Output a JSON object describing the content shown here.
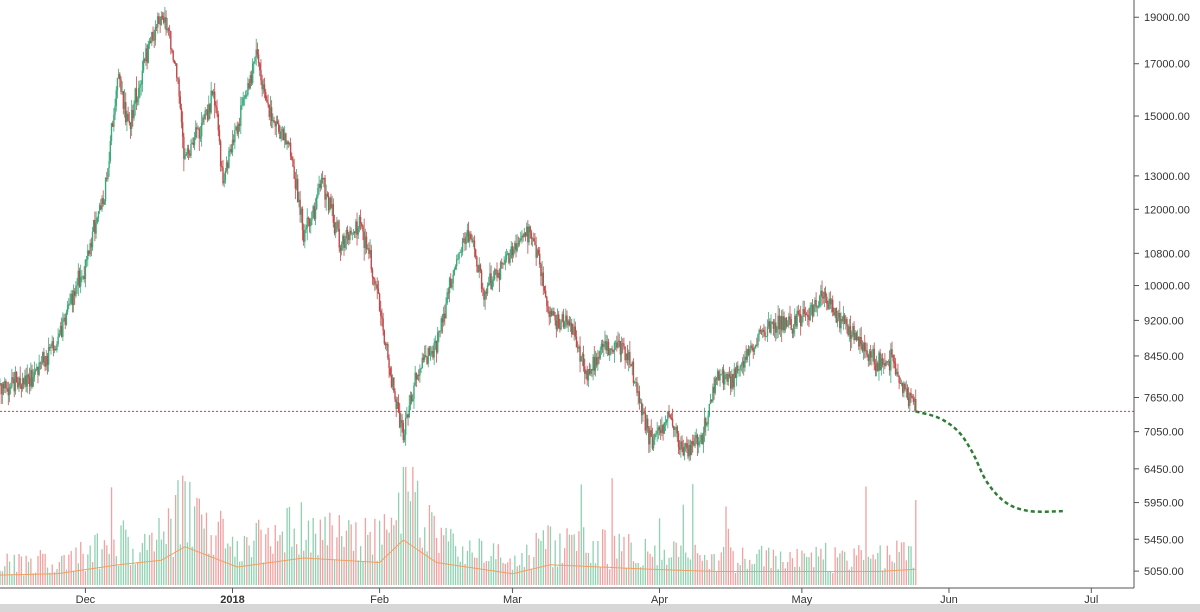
{
  "chart_data": {
    "type": "candlestick",
    "title": "",
    "xlabel": "",
    "ylabel": "",
    "y_scale": "log",
    "ylim": [
      4850,
      19800
    ],
    "y_ticks": [
      "19000.00",
      "17000.00",
      "15000.00",
      "13000.00",
      "12000.00",
      "10800.00",
      "10000.00",
      "9200.00",
      "8450.00",
      "7650.00",
      "7050.00",
      "6450.00",
      "5950.00",
      "5450.00",
      "5050.00"
    ],
    "y_tick_values": [
      19000,
      17000,
      15000,
      13000,
      12000,
      10800,
      10000,
      9200,
      8450,
      7650,
      7050,
      6450,
      5950,
      5450,
      5050
    ],
    "x_range": [
      "2017-11-13",
      "2018-07-10"
    ],
    "x_ticks": [
      {
        "label": "Dec",
        "date": "2017-12-01",
        "bold": false
      },
      {
        "label": "2018",
        "date": "2018-01-01",
        "bold": true
      },
      {
        "label": "Feb",
        "date": "2018-02-01",
        "bold": false
      },
      {
        "label": "Mar",
        "date": "2018-03-01",
        "bold": false
      },
      {
        "label": "Apr",
        "date": "2018-04-01",
        "bold": false
      },
      {
        "label": "May",
        "date": "2018-05-01",
        "bold": false
      },
      {
        "label": "Jun",
        "date": "2018-06-01",
        "bold": false
      },
      {
        "label": "Jul",
        "date": "2018-07-01",
        "bold": false
      }
    ],
    "price_path": [
      [
        "2017-11-13",
        7900
      ],
      [
        "2017-11-20",
        8000
      ],
      [
        "2017-11-25",
        8700
      ],
      [
        "2017-11-28",
        9700
      ],
      [
        "2017-12-01",
        10500
      ],
      [
        "2017-12-05",
        12500
      ],
      [
        "2017-12-08",
        16500
      ],
      [
        "2017-12-10",
        14500
      ],
      [
        "2017-12-13",
        16800
      ],
      [
        "2017-12-17",
        19300
      ],
      [
        "2017-12-20",
        17000
      ],
      [
        "2017-12-22",
        13500
      ],
      [
        "2017-12-25",
        14500
      ],
      [
        "2017-12-28",
        15800
      ],
      [
        "2017-12-30",
        13000
      ],
      [
        "2018-01-02",
        14500
      ],
      [
        "2018-01-06",
        17200
      ],
      [
        "2018-01-09",
        15000
      ],
      [
        "2018-01-13",
        14000
      ],
      [
        "2018-01-16",
        11200
      ],
      [
        "2018-01-20",
        12800
      ],
      [
        "2018-01-24",
        11000
      ],
      [
        "2018-01-28",
        11700
      ],
      [
        "2018-02-01",
        9500
      ],
      [
        "2018-02-03",
        8200
      ],
      [
        "2018-02-06",
        6900
      ],
      [
        "2018-02-09",
        8200
      ],
      [
        "2018-02-13",
        8700
      ],
      [
        "2018-02-17",
        10500
      ],
      [
        "2018-02-20",
        11400
      ],
      [
        "2018-02-23",
        9800
      ],
      [
        "2018-02-27",
        10600
      ],
      [
        "2018-03-05",
        11500
      ],
      [
        "2018-03-09",
        9300
      ],
      [
        "2018-03-13",
        9100
      ],
      [
        "2018-03-17",
        8000
      ],
      [
        "2018-03-20",
        8700
      ],
      [
        "2018-03-25",
        8500
      ],
      [
        "2018-03-30",
        6900
      ],
      [
        "2018-04-03",
        7300
      ],
      [
        "2018-04-06",
        6700
      ],
      [
        "2018-04-10",
        6900
      ],
      [
        "2018-04-13",
        8000
      ],
      [
        "2018-04-17",
        8000
      ],
      [
        "2018-04-22",
        8900
      ],
      [
        "2018-04-26",
        9100
      ],
      [
        "2018-05-01",
        9200
      ],
      [
        "2018-05-05",
        9800
      ],
      [
        "2018-05-09",
        9300
      ],
      [
        "2018-05-13",
        8700
      ],
      [
        "2018-05-17",
        8300
      ],
      [
        "2018-05-20",
        8400
      ],
      [
        "2018-05-22",
        7900
      ],
      [
        "2018-05-25",
        7400
      ]
    ],
    "volume_path": [
      [
        "2017-11-13",
        0.22
      ],
      [
        "2017-11-25",
        0.25
      ],
      [
        "2017-12-08",
        0.45
      ],
      [
        "2017-12-17",
        0.55
      ],
      [
        "2017-12-22",
        0.85
      ],
      [
        "2018-01-02",
        0.4
      ],
      [
        "2018-01-16",
        0.6
      ],
      [
        "2018-02-01",
        0.5
      ],
      [
        "2018-02-06",
        1.0
      ],
      [
        "2018-02-13",
        0.5
      ],
      [
        "2018-03-01",
        0.25
      ],
      [
        "2018-03-09",
        0.45
      ],
      [
        "2018-03-30",
        0.35
      ],
      [
        "2018-04-13",
        0.3
      ],
      [
        "2018-05-01",
        0.3
      ],
      [
        "2018-05-17",
        0.3
      ],
      [
        "2018-05-25",
        0.35
      ]
    ],
    "horizontal_line": {
      "value": 7400,
      "color": "#e53935",
      "style": "dotted"
    },
    "projection": {
      "color": "#2e7d32",
      "style": "dashed",
      "points": [
        [
          "2018-05-25",
          7400
        ],
        [
          "2018-05-30",
          7280
        ],
        [
          "2018-06-03",
          7050
        ],
        [
          "2018-06-06",
          6700
        ],
        [
          "2018-06-09",
          6250
        ],
        [
          "2018-06-13",
          5950
        ],
        [
          "2018-06-18",
          5830
        ],
        [
          "2018-06-25",
          5830
        ]
      ]
    },
    "colors": {
      "up": "#3aa87a",
      "down": "#c24a4a",
      "volume_up": "#8fd1b0",
      "volume_down": "#f2a0a0",
      "volume_ma": "#f0a060",
      "axis": "#555555"
    },
    "grid": false
  }
}
